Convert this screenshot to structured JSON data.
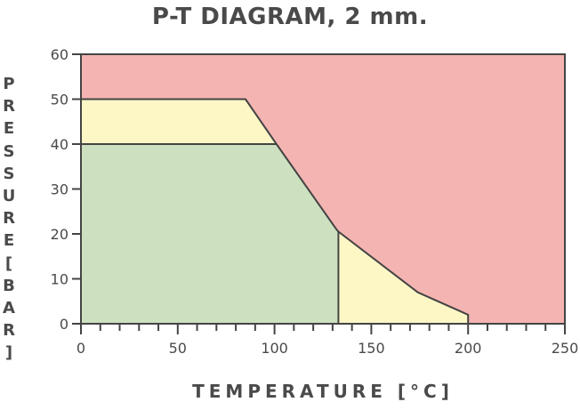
{
  "chart_data": {
    "type": "area",
    "title": "P-T DIAGRAM, 2 mm.",
    "xlabel": "TEMPERATURE [°C]",
    "ylabel": "PRESSURE[BAR]",
    "xlim": [
      0,
      250
    ],
    "ylim": [
      0,
      60
    ],
    "xticks": [
      0,
      50,
      100,
      150,
      200,
      250
    ],
    "yticks": [
      0,
      10,
      20,
      30,
      40,
      50,
      60
    ],
    "x_minor_step": 10,
    "grid": false,
    "regions": [
      {
        "color": "#f4b4b1",
        "points": [
          [
            0,
            60
          ],
          [
            250,
            60
          ],
          [
            250,
            0
          ],
          [
            200,
            0
          ],
          [
            200,
            2
          ],
          [
            174,
            7
          ],
          [
            133,
            20.5
          ],
          [
            132,
            21
          ],
          [
            100,
            40
          ],
          [
            85,
            50
          ],
          [
            0,
            50
          ]
        ]
      },
      {
        "color": "#fdf7c6",
        "points": [
          [
            0,
            50
          ],
          [
            85,
            50
          ],
          [
            101,
            40
          ],
          [
            0,
            40
          ]
        ]
      },
      {
        "color": "#fdf7c6",
        "points": [
          [
            133,
            0
          ],
          [
            133,
            20.5
          ],
          [
            174,
            7
          ],
          [
            200,
            2
          ],
          [
            200,
            0
          ]
        ]
      },
      {
        "color": "#cde1c0",
        "points": [
          [
            0,
            40
          ],
          [
            101,
            40
          ],
          [
            132,
            21
          ],
          [
            133,
            20.5
          ],
          [
            133,
            0
          ],
          [
            0,
            0
          ]
        ]
      }
    ],
    "boundary_lines": [
      [
        [
          0,
          50
        ],
        [
          85,
          50
        ],
        [
          101,
          40
        ],
        [
          132,
          21
        ],
        [
          133,
          20.5
        ],
        [
          174,
          7
        ],
        [
          200,
          2
        ],
        [
          200,
          0
        ]
      ],
      [
        [
          0,
          40
        ],
        [
          101,
          40
        ]
      ],
      [
        [
          133,
          20.5
        ],
        [
          133,
          0
        ]
      ]
    ]
  }
}
